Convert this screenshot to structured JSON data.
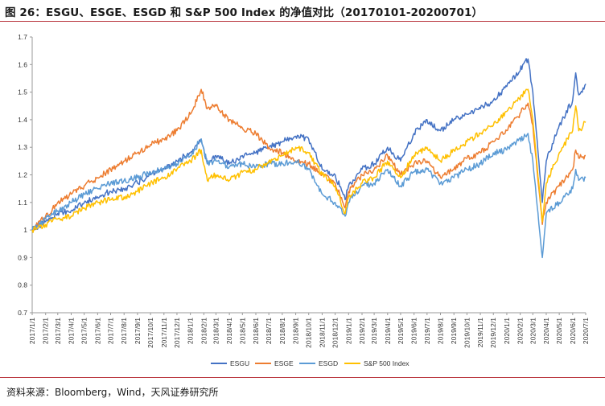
{
  "title": "图 26：ESGU、ESGE、ESGD 和 S&P 500 Index 的净值对比（20170101-20200701）",
  "source": "资料来源：Bloomberg，Wind，天风证券研究所",
  "chart_data": {
    "type": "line",
    "ylim": [
      0.7,
      1.7
    ],
    "yticks": [
      "0.7",
      "0.8",
      "0.9",
      "1",
      "1.1",
      "1.2",
      "1.3",
      "1.4",
      "1.5",
      "1.6",
      "1.7"
    ],
    "x_tick_labels": [
      "2017/1/1",
      "2017/2/1",
      "2017/3/1",
      "2017/4/1",
      "2017/5/1",
      "2017/6/1",
      "2017/7/1",
      "2017/8/1",
      "2017/9/1",
      "2017/10/1",
      "2017/11/1",
      "2017/12/1",
      "2018/1/1",
      "2018/2/1",
      "2018/3/1",
      "2018/4/1",
      "2018/5/1",
      "2018/6/1",
      "2018/7/1",
      "2018/8/1",
      "2018/9/1",
      "2018/10/1",
      "2018/11/1",
      "2018/12/1",
      "2019/1/1",
      "2019/2/1",
      "2019/3/1",
      "2019/4/1",
      "2019/5/1",
      "2019/6/1",
      "2019/7/1",
      "2019/8/1",
      "2019/9/1",
      "2019/10/1",
      "2019/11/1",
      "2019/12/1",
      "2020/1/1",
      "2020/2/1",
      "2020/3/1",
      "2020/4/1",
      "2020/5/1",
      "2020/6/1",
      "2020/7/1"
    ],
    "grid": false,
    "legend_position": "bottom",
    "series": [
      {
        "name": "ESGU",
        "color": "#4472c4",
        "x": [
          "2017/1/1",
          "2017/2/1",
          "2017/3/1",
          "2017/4/1",
          "2017/5/1",
          "2017/6/1",
          "2017/7/1",
          "2017/8/1",
          "2017/9/1",
          "2017/10/1",
          "2017/11/1",
          "2017/12/1",
          "2018/1/1",
          "2018/1/26",
          "2018/2/9",
          "2018/3/1",
          "2018/4/1",
          "2018/5/1",
          "2018/6/1",
          "2018/7/1",
          "2018/8/1",
          "2018/9/1",
          "2018/10/1",
          "2018/11/1",
          "2018/12/1",
          "2018/12/24",
          "2019/1/1",
          "2019/2/1",
          "2019/3/1",
          "2019/4/1",
          "2019/5/1",
          "2019/6/1",
          "2019/7/1",
          "2019/8/1",
          "2019/9/1",
          "2019/10/1",
          "2019/11/1",
          "2019/12/1",
          "2020/1/1",
          "2020/2/19",
          "2020/3/1",
          "2020/3/23",
          "2020/4/1",
          "2020/5/1",
          "2020/6/1",
          "2020/6/8",
          "2020/6/15",
          "2020/7/1"
        ],
        "values": [
          1.0,
          1.03,
          1.06,
          1.07,
          1.1,
          1.12,
          1.14,
          1.15,
          1.17,
          1.2,
          1.22,
          1.25,
          1.28,
          1.33,
          1.24,
          1.27,
          1.24,
          1.27,
          1.28,
          1.3,
          1.32,
          1.34,
          1.33,
          1.22,
          1.2,
          1.11,
          1.16,
          1.22,
          1.24,
          1.3,
          1.25,
          1.35,
          1.4,
          1.36,
          1.4,
          1.42,
          1.44,
          1.47,
          1.52,
          1.62,
          1.5,
          1.1,
          1.25,
          1.38,
          1.47,
          1.57,
          1.49,
          1.53
        ]
      },
      {
        "name": "ESGE",
        "color": "#ed7d31",
        "x": [
          "2017/1/1",
          "2017/2/1",
          "2017/3/1",
          "2017/4/1",
          "2017/5/1",
          "2017/6/1",
          "2017/7/1",
          "2017/8/1",
          "2017/9/1",
          "2017/10/1",
          "2017/11/1",
          "2017/12/1",
          "2018/1/1",
          "2018/1/26",
          "2018/2/9",
          "2018/3/1",
          "2018/4/1",
          "2018/5/1",
          "2018/6/1",
          "2018/7/1",
          "2018/8/1",
          "2018/9/1",
          "2018/10/1",
          "2018/11/1",
          "2018/12/1",
          "2018/12/24",
          "2019/1/1",
          "2019/2/1",
          "2019/3/1",
          "2019/4/1",
          "2019/5/1",
          "2019/6/1",
          "2019/7/1",
          "2019/8/1",
          "2019/9/1",
          "2019/10/1",
          "2019/11/1",
          "2019/12/1",
          "2020/1/1",
          "2020/2/19",
          "2020/3/1",
          "2020/3/23",
          "2020/4/1",
          "2020/5/1",
          "2020/6/1",
          "2020/6/8",
          "2020/6/15",
          "2020/7/1"
        ],
        "values": [
          1.0,
          1.05,
          1.1,
          1.13,
          1.16,
          1.19,
          1.22,
          1.25,
          1.28,
          1.31,
          1.33,
          1.36,
          1.42,
          1.51,
          1.44,
          1.45,
          1.4,
          1.37,
          1.35,
          1.3,
          1.28,
          1.25,
          1.24,
          1.2,
          1.17,
          1.08,
          1.14,
          1.2,
          1.22,
          1.27,
          1.2,
          1.24,
          1.25,
          1.19,
          1.22,
          1.26,
          1.28,
          1.32,
          1.36,
          1.46,
          1.38,
          1.02,
          1.1,
          1.16,
          1.22,
          1.29,
          1.26,
          1.27
        ]
      },
      {
        "name": "ESGD",
        "color": "#5b9bd5",
        "x": [
          "2017/1/1",
          "2017/2/1",
          "2017/3/1",
          "2017/4/1",
          "2017/5/1",
          "2017/6/1",
          "2017/7/1",
          "2017/8/1",
          "2017/9/1",
          "2017/10/1",
          "2017/11/1",
          "2017/12/1",
          "2018/1/1",
          "2018/1/26",
          "2018/2/9",
          "2018/3/1",
          "2018/4/1",
          "2018/5/1",
          "2018/6/1",
          "2018/7/1",
          "2018/8/1",
          "2018/9/1",
          "2018/10/1",
          "2018/11/1",
          "2018/12/1",
          "2018/12/24",
          "2019/1/1",
          "2019/2/1",
          "2019/3/1",
          "2019/4/1",
          "2019/5/1",
          "2019/6/1",
          "2019/7/1",
          "2019/8/1",
          "2019/9/1",
          "2019/10/1",
          "2019/11/1",
          "2019/12/1",
          "2020/1/1",
          "2020/2/19",
          "2020/3/1",
          "2020/3/23",
          "2020/4/1",
          "2020/5/1",
          "2020/6/1",
          "2020/6/8",
          "2020/6/15",
          "2020/7/1"
        ],
        "values": [
          1.0,
          1.04,
          1.07,
          1.1,
          1.13,
          1.15,
          1.17,
          1.18,
          1.19,
          1.21,
          1.22,
          1.24,
          1.27,
          1.33,
          1.24,
          1.25,
          1.23,
          1.24,
          1.23,
          1.24,
          1.24,
          1.25,
          1.22,
          1.13,
          1.1,
          1.05,
          1.1,
          1.16,
          1.17,
          1.22,
          1.16,
          1.21,
          1.22,
          1.17,
          1.19,
          1.22,
          1.24,
          1.28,
          1.29,
          1.35,
          1.25,
          0.9,
          1.06,
          1.1,
          1.15,
          1.22,
          1.18,
          1.19
        ]
      },
      {
        "name": "S&P 500 Index",
        "color": "#ffc000",
        "x": [
          "2017/1/1",
          "2017/2/1",
          "2017/3/1",
          "2017/4/1",
          "2017/5/1",
          "2017/6/1",
          "2017/7/1",
          "2017/8/1",
          "2017/9/1",
          "2017/10/1",
          "2017/11/1",
          "2017/12/1",
          "2018/1/1",
          "2018/1/26",
          "2018/2/9",
          "2018/3/1",
          "2018/4/1",
          "2018/5/1",
          "2018/6/1",
          "2018/7/1",
          "2018/8/1",
          "2018/9/1",
          "2018/10/1",
          "2018/11/1",
          "2018/12/1",
          "2018/12/24",
          "2019/1/1",
          "2019/2/1",
          "2019/3/1",
          "2019/4/1",
          "2019/5/1",
          "2019/6/1",
          "2019/7/1",
          "2019/8/1",
          "2019/9/1",
          "2019/10/1",
          "2019/11/1",
          "2019/12/1",
          "2020/1/1",
          "2020/2/19",
          "2020/3/1",
          "2020/3/23",
          "2020/4/1",
          "2020/5/1",
          "2020/6/1",
          "2020/6/8",
          "2020/6/15",
          "2020/7/1"
        ],
        "values": [
          1.0,
          1.02,
          1.04,
          1.05,
          1.08,
          1.1,
          1.11,
          1.12,
          1.14,
          1.17,
          1.19,
          1.22,
          1.25,
          1.29,
          1.18,
          1.2,
          1.18,
          1.21,
          1.22,
          1.25,
          1.27,
          1.3,
          1.28,
          1.2,
          1.16,
          1.06,
          1.12,
          1.17,
          1.19,
          1.25,
          1.19,
          1.27,
          1.3,
          1.25,
          1.29,
          1.32,
          1.35,
          1.38,
          1.43,
          1.51,
          1.4,
          1.03,
          1.17,
          1.28,
          1.36,
          1.45,
          1.36,
          1.39
        ]
      }
    ]
  }
}
